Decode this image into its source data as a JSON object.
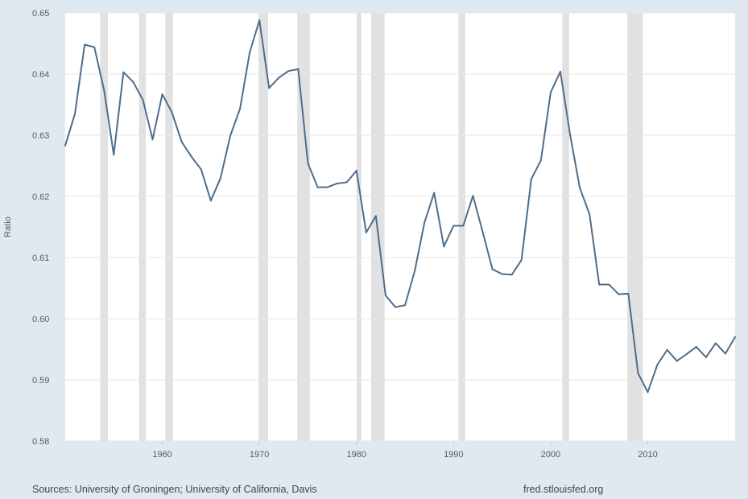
{
  "colors": {
    "page_background": "#e1e9f0",
    "plot_background": "#ffffff",
    "gridline": "#e6e6e6",
    "recession": "#e1e1e1",
    "series_line": "#4f6d8a",
    "text": "#595959"
  },
  "footer": {
    "sources": "Sources: University of Groningen; University of California, Davis",
    "credit": "fred.stlouisfed.org"
  },
  "chart_data": {
    "type": "line",
    "title": "",
    "xlabel": "",
    "ylabel": "Ratio",
    "xlim": [
      1950,
      2019
    ],
    "ylim": [
      0.58,
      0.65
    ],
    "x_ticks": [
      1960,
      1970,
      1980,
      1990,
      2000,
      2010
    ],
    "x_tick_labels": [
      "1960",
      "1970",
      "1980",
      "1990",
      "2000",
      "2010"
    ],
    "y_ticks": [
      0.58,
      0.59,
      0.6,
      0.61,
      0.62,
      0.63,
      0.64,
      0.65
    ],
    "y_tick_labels": [
      "0.58",
      "0.59",
      "0.60",
      "0.61",
      "0.62",
      "0.63",
      "0.64",
      "0.65"
    ],
    "grid": "horizontal",
    "legend": "none",
    "recessions": [
      [
        1953.6,
        1954.4
      ],
      [
        1957.6,
        1958.3
      ],
      [
        1960.3,
        1961.1
      ],
      [
        1969.9,
        1970.9
      ],
      [
        1973.9,
        1975.2
      ],
      [
        1980.0,
        1980.5
      ],
      [
        1981.5,
        1982.9
      ],
      [
        1990.5,
        1991.2
      ],
      [
        2001.2,
        2001.9
      ],
      [
        2007.9,
        2009.5
      ]
    ],
    "series": [
      {
        "x": [
          1950,
          1951,
          1952,
          1953,
          1954,
          1955,
          1956,
          1957,
          1958,
          1959,
          1960,
          1961,
          1962,
          1963,
          1964,
          1965,
          1966,
          1967,
          1968,
          1969,
          1970,
          1971,
          1972,
          1973,
          1974,
          1975,
          1976,
          1977,
          1978,
          1979,
          1980,
          1981,
          1982,
          1983,
          1984,
          1985,
          1986,
          1987,
          1988,
          1989,
          1990,
          1991,
          1992,
          1993,
          1994,
          1995,
          1996,
          1997,
          1998,
          1999,
          2000,
          2001,
          2002,
          2003,
          2004,
          2005,
          2006,
          2007,
          2008,
          2009,
          2010,
          2011,
          2012,
          2013,
          2014,
          2015,
          2016,
          2017,
          2018,
          2019
        ],
        "values": [
          0.6283,
          0.6335,
          0.6448,
          0.6444,
          0.6374,
          0.6268,
          0.6403,
          0.6387,
          0.6358,
          0.6293,
          0.6367,
          0.6337,
          0.6289,
          0.6265,
          0.6244,
          0.6193,
          0.623,
          0.6299,
          0.6343,
          0.6435,
          0.6488,
          0.6377,
          0.6394,
          0.6405,
          0.6408,
          0.6254,
          0.6215,
          0.6215,
          0.6221,
          0.6223,
          0.6242,
          0.6141,
          0.6168,
          0.6038,
          0.6019,
          0.6022,
          0.6078,
          0.6157,
          0.6206,
          0.6118,
          0.6152,
          0.6152,
          0.6201,
          0.6142,
          0.6081,
          0.6073,
          0.6072,
          0.6096,
          0.6228,
          0.6259,
          0.637,
          0.6404,
          0.6301,
          0.6214,
          0.6171,
          0.6056,
          0.6056,
          0.604,
          0.6041,
          0.5911,
          0.588,
          0.5925,
          0.5949,
          0.5931,
          0.5942,
          0.5954,
          0.5937,
          0.596,
          0.5943,
          0.597
        ]
      }
    ]
  }
}
